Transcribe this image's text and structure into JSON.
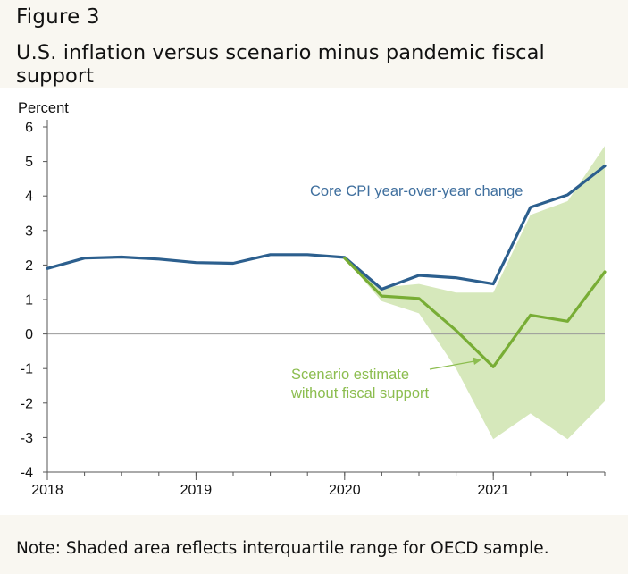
{
  "figure": {
    "label": "Figure 3",
    "title": "U.S. inflation versus scenario minus pandemic fiscal support",
    "note": "Note: Shaded area reflects interquartile range for OECD sample."
  },
  "colors": {
    "cpi_line": "#2c5f8e",
    "scenario_line": "#78ad35",
    "band_fill": "#d6e8bb",
    "axis": "#555555",
    "cpi_label": "#3f6f9e",
    "scenario_label": "#8cbd4f"
  },
  "chart_data": {
    "type": "line",
    "ylabel": "Percent",
    "ylim": [
      -4,
      6
    ],
    "yticks": [
      "6",
      "5",
      "4",
      "3",
      "2",
      "1",
      "0",
      "-1",
      "-2",
      "-3",
      "-4"
    ],
    "xlim": [
      "2018Q1",
      "2021Q4"
    ],
    "xticks": [
      "2018",
      "2019",
      "2020",
      "2021"
    ],
    "series": [
      {
        "name": "Core CPI year-over-year change",
        "x": [
          "2018Q1",
          "2018Q2",
          "2018Q3",
          "2018Q4",
          "2019Q1",
          "2019Q2",
          "2019Q3",
          "2019Q4",
          "2020Q1",
          "2020Q2",
          "2020Q3",
          "2020Q4",
          "2021Q1",
          "2021Q2",
          "2021Q3",
          "2021Q4"
        ],
        "values": [
          1.9,
          2.2,
          2.23,
          2.17,
          2.07,
          2.05,
          2.3,
          2.3,
          2.22,
          1.3,
          1.7,
          1.63,
          1.45,
          3.67,
          4.03,
          4.87
        ]
      },
      {
        "name": "Scenario estimate without fiscal support",
        "x": [
          "2020Q1",
          "2020Q2",
          "2020Q3",
          "2020Q4",
          "2021Q1",
          "2021Q2",
          "2021Q3",
          "2021Q4"
        ],
        "values": [
          2.2,
          1.1,
          1.03,
          0.1,
          -0.95,
          0.55,
          0.37,
          1.8
        ]
      }
    ],
    "interquartile_band": {
      "x": [
        "2020Q1",
        "2020Q2",
        "2020Q3",
        "2020Q4",
        "2021Q1",
        "2021Q2",
        "2021Q3",
        "2021Q4"
      ],
      "upper": [
        2.2,
        1.35,
        1.45,
        1.2,
        1.2,
        3.45,
        3.85,
        5.45
      ],
      "lower": [
        2.2,
        0.95,
        0.6,
        -1.0,
        -3.05,
        -2.3,
        -3.05,
        -1.95
      ]
    },
    "annotations": [
      {
        "text": "Core CPI year-over-year change"
      },
      {
        "text": "Scenario estimate",
        "text2": "without fiscal support"
      }
    ],
    "legend": "none",
    "grid": false,
    "zero_line": true
  }
}
